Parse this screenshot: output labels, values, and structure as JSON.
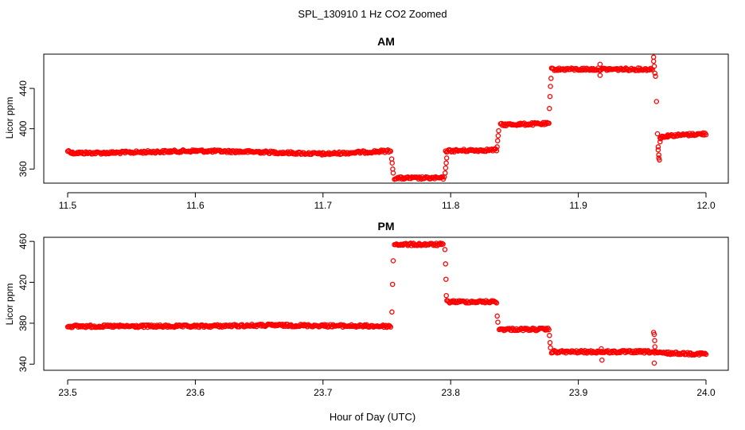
{
  "figure": {
    "title": "SPL_130910  1 Hz CO2 Zoomed",
    "xlabel": "Hour of Day (UTC)",
    "marker_color": "#ff0000"
  },
  "chart_data": [
    {
      "type": "scatter",
      "title": "AM",
      "xlabel": "Hour of Day (UTC)",
      "ylabel": "Licor ppm",
      "xlim": [
        11.5,
        12.0
      ],
      "ylim": [
        346,
        474
      ],
      "x_ticks": [
        "11.5",
        "11.6",
        "11.7",
        "11.8",
        "11.9",
        "12.0"
      ],
      "x_tick_values": [
        11.5,
        11.6,
        11.7,
        11.8,
        11.9,
        12.0
      ],
      "y_ticks": [
        "360",
        "400",
        "440"
      ],
      "y_tick_values": [
        360,
        400,
        440
      ],
      "series": [
        {
          "color": "#ff0000",
          "segments": [
            {
              "x0": 11.5,
              "x1": 11.503,
              "y0": 378,
              "y1": 377
            },
            {
              "x0": 11.503,
              "x1": 11.53,
              "y0": 376,
              "y1": 376
            },
            {
              "x0": 11.53,
              "x1": 11.6,
              "y0": 376,
              "y1": 378
            },
            {
              "x0": 11.6,
              "x1": 11.65,
              "y0": 378,
              "y1": 377
            },
            {
              "x0": 11.65,
              "x1": 11.7,
              "y0": 377,
              "y1": 375
            },
            {
              "x0": 11.7,
              "x1": 11.753,
              "y0": 375,
              "y1": 378
            },
            {
              "x0": 11.756,
              "x1": 11.795,
              "y0": 351,
              "y1": 351
            },
            {
              "x0": 11.796,
              "x1": 11.836,
              "y0": 378,
              "y1": 379
            },
            {
              "x0": 11.839,
              "x1": 11.877,
              "y0": 404,
              "y1": 405
            },
            {
              "x0": 11.879,
              "x1": 11.958,
              "y0": 459,
              "y1": 459
            },
            {
              "x0": 11.964,
              "x1": 11.97,
              "y0": 392,
              "y1": 393
            },
            {
              "x0": 11.97,
              "x1": 12.0,
              "y0": 393,
              "y1": 395
            }
          ],
          "points": [
            {
              "x": 11.7538,
              "y": 370
            },
            {
              "x": 11.7542,
              "y": 366
            },
            {
              "x": 11.7546,
              "y": 360
            },
            {
              "x": 11.755,
              "y": 356
            },
            {
              "x": 11.7957,
              "y": 356
            },
            {
              "x": 11.7961,
              "y": 361
            },
            {
              "x": 11.7965,
              "y": 366
            },
            {
              "x": 11.7969,
              "y": 371
            },
            {
              "x": 11.8364,
              "y": 382
            },
            {
              "x": 11.8368,
              "y": 388
            },
            {
              "x": 11.8372,
              "y": 393
            },
            {
              "x": 11.8376,
              "y": 398
            },
            {
              "x": 11.8774,
              "y": 420
            },
            {
              "x": 11.8778,
              "y": 432
            },
            {
              "x": 11.8782,
              "y": 442
            },
            {
              "x": 11.8786,
              "y": 450
            },
            {
              "x": 11.917,
              "y": 464
            },
            {
              "x": 11.917,
              "y": 453
            },
            {
              "x": 11.959,
              "y": 471
            },
            {
              "x": 11.959,
              "y": 467
            },
            {
              "x": 11.9595,
              "y": 462
            },
            {
              "x": 11.96,
              "y": 455
            },
            {
              "x": 11.9605,
              "y": 452
            },
            {
              "x": 11.9612,
              "y": 427
            },
            {
              "x": 11.962,
              "y": 395
            },
            {
              "x": 11.9625,
              "y": 382
            },
            {
              "x": 11.9625,
              "y": 379
            },
            {
              "x": 11.963,
              "y": 374
            },
            {
              "x": 11.963,
              "y": 371
            },
            {
              "x": 11.9635,
              "y": 369
            },
            {
              "x": 11.964,
              "y": 387
            },
            {
              "x": 11.9645,
              "y": 390
            }
          ]
        }
      ]
    },
    {
      "type": "scatter",
      "title": "PM",
      "xlabel": "Hour of Day (UTC)",
      "ylabel": "Licor ppm",
      "xlim": [
        23.5,
        24.0
      ],
      "ylim": [
        334,
        464
      ],
      "x_ticks": [
        "23.5",
        "23.6",
        "23.7",
        "23.8",
        "23.9",
        "24.0"
      ],
      "x_tick_values": [
        23.5,
        23.6,
        23.7,
        23.8,
        23.9,
        24.0
      ],
      "y_ticks": [
        "340",
        "380",
        "420",
        "460"
      ],
      "y_tick_values": [
        340,
        380,
        420,
        460
      ],
      "series": [
        {
          "color": "#ff0000",
          "segments": [
            {
              "x0": 23.5,
              "x1": 23.6,
              "y0": 377,
              "y1": 377
            },
            {
              "x0": 23.6,
              "x1": 23.66,
              "y0": 377,
              "y1": 378
            },
            {
              "x0": 23.66,
              "x1": 23.753,
              "y0": 378,
              "y1": 377
            },
            {
              "x0": 23.756,
              "x1": 23.794,
              "y0": 457,
              "y1": 457
            },
            {
              "x0": 23.797,
              "x1": 23.836,
              "y0": 401,
              "y1": 401
            },
            {
              "x0": 23.838,
              "x1": 23.877,
              "y0": 374,
              "y1": 374
            },
            {
              "x0": 23.879,
              "x1": 23.96,
              "y0": 352,
              "y1": 352
            },
            {
              "x0": 23.96,
              "x1": 24.0,
              "y0": 351,
              "y1": 350
            }
          ],
          "points": [
            {
              "x": 23.754,
              "y": 391
            },
            {
              "x": 23.7545,
              "y": 418
            },
            {
              "x": 23.755,
              "y": 441
            },
            {
              "x": 23.7955,
              "y": 452
            },
            {
              "x": 23.796,
              "y": 438
            },
            {
              "x": 23.7963,
              "y": 423
            },
            {
              "x": 23.7966,
              "y": 407
            },
            {
              "x": 23.8365,
              "y": 387
            },
            {
              "x": 23.837,
              "y": 381
            },
            {
              "x": 23.8774,
              "y": 368
            },
            {
              "x": 23.8778,
              "y": 361
            },
            {
              "x": 23.8782,
              "y": 356
            },
            {
              "x": 23.918,
              "y": 355
            },
            {
              "x": 23.9185,
              "y": 344
            },
            {
              "x": 23.959,
              "y": 371
            },
            {
              "x": 23.9595,
              "y": 369
            },
            {
              "x": 23.9598,
              "y": 363
            },
            {
              "x": 23.96,
              "y": 357
            },
            {
              "x": 23.9595,
              "y": 341
            }
          ]
        }
      ]
    }
  ]
}
